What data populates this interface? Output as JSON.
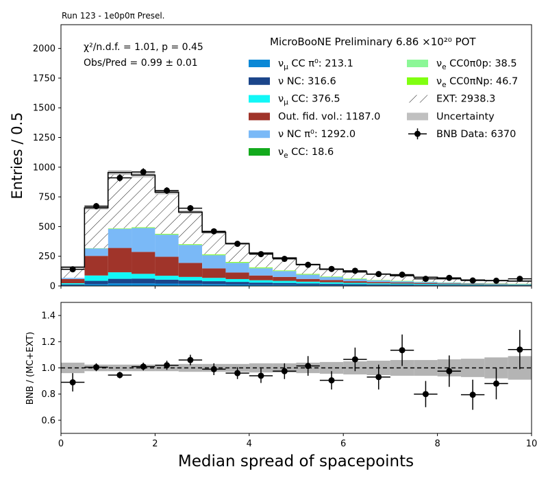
{
  "figure": {
    "run_label": "Run 123 - 1e0p0π Presel.",
    "experiment_label": "MicroBooNE Preliminary 6.86 ×10²⁰ POT",
    "chi2_label": "χ²/n.d.f. = 1.01, p = 0.45",
    "obs_pred_label": "Obs/Pred = 0.99 ± 0.01"
  },
  "chart_data": [
    {
      "type": "bar",
      "stacked": true,
      "ylabel": "Entries / 0.5",
      "xlim": [
        0,
        10
      ],
      "ylim": [
        0,
        2200
      ],
      "yticks": [
        0,
        250,
        500,
        750,
        1000,
        1250,
        1500,
        1750,
        2000
      ],
      "bin_edges": [
        0,
        0.5,
        1,
        1.5,
        2,
        2.5,
        3,
        3.5,
        4,
        4.5,
        5,
        5.5,
        6,
        6.5,
        7,
        7.5,
        8,
        8.5,
        9,
        9.5,
        10
      ],
      "legend_position": "top-right",
      "series": [
        {
          "key": "numu_cc_pi0",
          "legend": "ν_μ CC π⁰: 213.1",
          "color": "#0a88d6",
          "values": [
            5,
            15,
            22,
            22,
            20,
            18,
            16,
            14,
            11,
            10,
            8,
            7,
            6,
            5,
            5,
            4,
            4,
            3,
            3,
            3
          ]
        },
        {
          "key": "nu_nc",
          "legend": "ν NC: 316.6",
          "color": "#1b458a",
          "values": [
            8,
            28,
            38,
            40,
            33,
            28,
            24,
            20,
            17,
            15,
            13,
            11,
            9,
            8,
            7,
            6,
            5,
            4,
            4,
            3
          ]
        },
        {
          "key": "numu_cc",
          "legend": "ν_μ CC: 376.5",
          "color": "#12f7f7",
          "values": [
            10,
            45,
            55,
            40,
            33,
            30,
            28,
            24,
            20,
            18,
            15,
            13,
            11,
            9,
            8,
            7,
            6,
            5,
            4,
            4
          ]
        },
        {
          "key": "out_fid_vol",
          "legend": "Out. fid. vol.: 1187.0",
          "color": "#a0342a",
          "values": [
            35,
            165,
            205,
            185,
            160,
            118,
            80,
            55,
            40,
            33,
            23,
            19,
            14,
            11,
            9,
            8,
            6,
            5,
            4,
            3
          ]
        },
        {
          "key": "nu_nc_pi0",
          "legend": "ν NC π⁰: 1292.0",
          "color": "#7ab9f7",
          "values": [
            10,
            62,
            160,
            200,
            185,
            150,
            110,
            80,
            60,
            48,
            35,
            24,
            17,
            13,
            10,
            8,
            6,
            5,
            4,
            3
          ]
        },
        {
          "key": "nue_cc",
          "legend": "ν_e CC: 18.6",
          "color": "#13aa1d",
          "values": [
            0,
            1,
            1,
            1,
            1,
            1,
            1,
            1,
            1,
            1,
            1,
            1,
            1,
            1,
            1,
            1,
            1,
            1,
            1,
            1
          ]
        },
        {
          "key": "nue_cc0pi0p",
          "legend": "ν_e CC0π0p: 38.5",
          "color": "#8cf797",
          "values": [
            0,
            1,
            2,
            3,
            3,
            3,
            3,
            3,
            3,
            2,
            2,
            2,
            2,
            2,
            2,
            1,
            1,
            1,
            1,
            1
          ]
        },
        {
          "key": "nue_cc0piNp",
          "legend": "ν_e CC0πNp: 46.7",
          "color": "#80ff10",
          "values": [
            0,
            1,
            2,
            3,
            4,
            4,
            5,
            5,
            5,
            4,
            4,
            3,
            3,
            2,
            2,
            1,
            1,
            1,
            1,
            1
          ]
        },
        {
          "key": "ext",
          "legend": "EXT: 2938.3",
          "color": "#ffffff",
          "hatch": true,
          "values": [
            90,
            340,
            470,
            440,
            350,
            270,
            185,
            155,
            120,
            105,
            80,
            60,
            55,
            48,
            42,
            37,
            30,
            25,
            24,
            22
          ]
        }
      ],
      "uncertainty": {
        "legend": "Uncertainty",
        "color": "#c0c0c0",
        "values": [
          8,
          15,
          20,
          20,
          18,
          15,
          12,
          10,
          9,
          8,
          7,
          6,
          5,
          5,
          5,
          4,
          4,
          4,
          4,
          4
        ]
      },
      "data": {
        "legend": "BNB Data: 6370",
        "color": "#000000",
        "values": [
          140,
          672,
          910,
          960,
          803,
          655,
          460,
          355,
          268,
          228,
          178,
          143,
          128,
          100,
          95,
          60,
          68,
          46,
          44,
          60
        ]
      }
    },
    {
      "type": "scatter",
      "xlabel": "Median spread of spacepoints",
      "ylabel": "BNB / (MC+EXT)",
      "xlim": [
        0,
        10
      ],
      "ylim": [
        0.5,
        1.5
      ],
      "yticks": [
        0.6,
        0.8,
        1.0,
        1.2,
        1.4
      ],
      "xticks": [
        0,
        2,
        4,
        6,
        8,
        10
      ],
      "reference_line": 1.0,
      "ratio": [
        0.89,
        1.005,
        0.945,
        1.01,
        1.02,
        1.06,
        0.99,
        0.96,
        0.94,
        0.975,
        1.015,
        0.905,
        1.065,
        0.93,
        1.135,
        0.8,
        0.975,
        0.795,
        0.88,
        1.14
      ],
      "ratio_err": [
        0.07,
        0.03,
        0.025,
        0.03,
        0.035,
        0.04,
        0.045,
        0.045,
        0.055,
        0.06,
        0.075,
        0.07,
        0.09,
        0.095,
        0.12,
        0.1,
        0.12,
        0.115,
        0.12,
        0.15
      ],
      "band_lo": [
        0.96,
        0.975,
        0.975,
        0.975,
        0.975,
        0.97,
        0.97,
        0.97,
        0.965,
        0.965,
        0.96,
        0.955,
        0.95,
        0.945,
        0.94,
        0.94,
        0.935,
        0.93,
        0.92,
        0.91
      ],
      "band_hi": [
        1.04,
        1.025,
        1.025,
        1.025,
        1.025,
        1.03,
        1.03,
        1.03,
        1.035,
        1.035,
        1.04,
        1.045,
        1.05,
        1.055,
        1.06,
        1.06,
        1.065,
        1.07,
        1.08,
        1.09
      ]
    }
  ]
}
